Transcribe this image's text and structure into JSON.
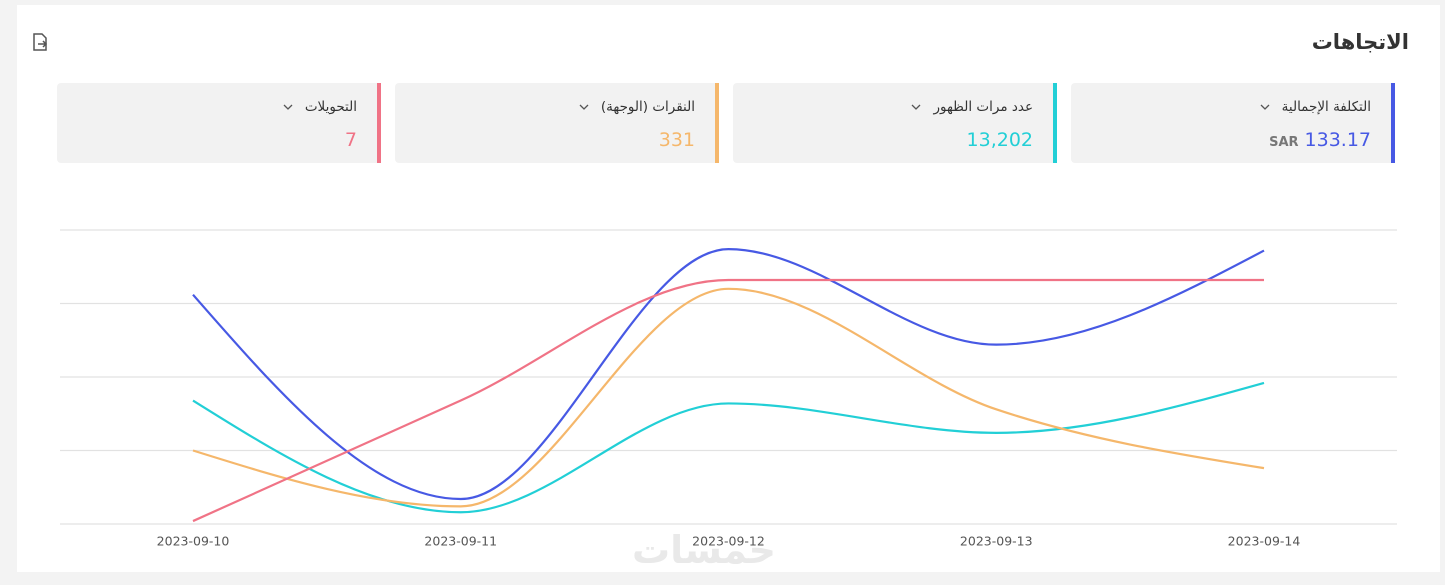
{
  "header": {
    "title": "الاتجاهات"
  },
  "metrics": [
    {
      "label": "التكلفة الإجمالية",
      "value": "133.17",
      "unit": "SAR",
      "color": "#4759e4"
    },
    {
      "label": "عدد مرات الظهور",
      "value": "13,202",
      "color": "#22cfd6"
    },
    {
      "label": "النقرات (الوجهة)",
      "value": "331",
      "color": "#f5b76b"
    },
    {
      "label": "التحويلات",
      "value": "7",
      "color": "#f07386"
    }
  ],
  "watermark": "خمسات",
  "chart_data": {
    "type": "line",
    "categories": [
      "2023-09-10",
      "2023-09-11",
      "2023-09-12",
      "2023-09-13",
      "2023-09-14"
    ],
    "series": [
      {
        "color": "#4759e4",
        "values": [
          78,
          8.5,
          93.5,
          61,
          93
        ]
      },
      {
        "color": "#22cfd6",
        "values": [
          42,
          4,
          41,
          31,
          48
        ]
      },
      {
        "color": "#f5b76b",
        "values": [
          25,
          6,
          80,
          39,
          19
        ]
      },
      {
        "color": "#f07386",
        "values": [
          1,
          42,
          83,
          83,
          83
        ]
      }
    ],
    "ylim": [
      0,
      100
    ],
    "yticks": [
      0,
      25,
      50,
      75,
      100
    ],
    "grid": true
  }
}
